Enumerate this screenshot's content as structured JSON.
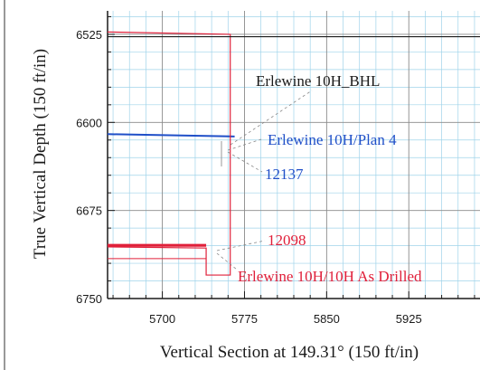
{
  "chart_data": {
    "type": "line",
    "xlabel": "Vertical Section at 149.31° (150 ft/in)",
    "ylabel": "True Vertical Depth (150 ft/in)",
    "xlim": [
      5650,
      5990
    ],
    "ylim": [
      6750,
      6505
    ],
    "x_ticks": [
      5700,
      5775,
      5850,
      5925
    ],
    "y_ticks": [
      6525,
      6600,
      6675,
      6750
    ],
    "x_tick_labels": [
      "5700",
      "5775",
      "5850",
      "5925"
    ],
    "y_tick_labels": [
      "6525",
      "6600",
      "6675",
      "6750"
    ],
    "grid": true,
    "series": [
      {
        "name": "Erlewine 10H/Plan 4",
        "color": "#1f4fc8",
        "x": [
          5650,
          5766
        ],
        "y": [
          6610,
          6612
        ]
      },
      {
        "name": "Erlewine 10H/10H As Drilled",
        "color": "#e0203a",
        "x": [
          5650,
          5740,
          5740,
          5762,
          5762,
          5650
        ],
        "y": [
          6706,
          6707,
          6730,
          6730,
          6525,
          6523
        ]
      }
    ],
    "annotations": [
      {
        "text": "Erlewine 10H_BHL",
        "color": "#1a1a1a"
      },
      {
        "text": "Erlewine 10H/Plan 4",
        "color": "#1f4fc8"
      },
      {
        "text": "12137",
        "color": "#1f4fc8"
      },
      {
        "text": "12098",
        "color": "#e0203a"
      },
      {
        "text": "Erlewine 10H/10H As Drilled",
        "color": "#e0203a"
      }
    ]
  }
}
